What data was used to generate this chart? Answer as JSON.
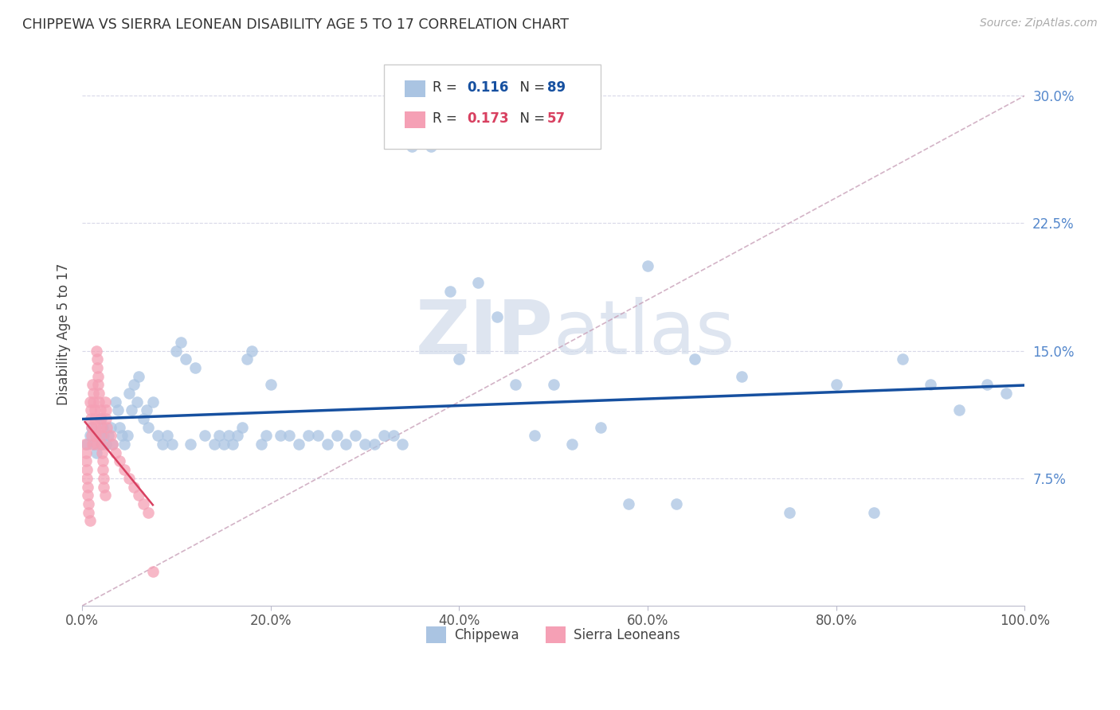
{
  "title": "CHIPPEWA VS SIERRA LEONEAN DISABILITY AGE 5 TO 17 CORRELATION CHART",
  "source": "Source: ZipAtlas.com",
  "ylabel": "Disability Age 5 to 17",
  "xlim": [
    0,
    1.0
  ],
  "ylim": [
    0,
    0.32
  ],
  "yticks": [
    0.075,
    0.15,
    0.225,
    0.3
  ],
  "yticklabels": [
    "7.5%",
    "15.0%",
    "22.5%",
    "30.0%"
  ],
  "xticks": [
    0.0,
    0.2,
    0.4,
    0.6,
    0.8,
    1.0
  ],
  "xticklabels": [
    "0.0%",
    "20.0%",
    "40.0%",
    "60.0%",
    "80.0%",
    "100.0%"
  ],
  "chippewa_R": 0.116,
  "chippewa_N": 89,
  "sierra_R": 0.173,
  "sierra_N": 57,
  "chippewa_color": "#aac4e2",
  "sierra_color": "#f5a0b5",
  "chippewa_line_color": "#1650a0",
  "sierra_line_color": "#d84060",
  "ref_line_color": "#c8a0b8",
  "background_color": "#ffffff",
  "grid_color": "#d8d8e8",
  "watermark_color": "#d0daea",
  "chippewa_x": [
    0.005,
    0.008,
    0.01,
    0.012,
    0.015,
    0.018,
    0.02,
    0.02,
    0.022,
    0.023,
    0.025,
    0.028,
    0.03,
    0.032,
    0.035,
    0.038,
    0.04,
    0.042,
    0.045,
    0.048,
    0.05,
    0.052,
    0.055,
    0.058,
    0.06,
    0.065,
    0.068,
    0.07,
    0.075,
    0.08,
    0.085,
    0.09,
    0.095,
    0.1,
    0.105,
    0.11,
    0.115,
    0.12,
    0.13,
    0.14,
    0.145,
    0.15,
    0.155,
    0.16,
    0.165,
    0.17,
    0.175,
    0.18,
    0.19,
    0.195,
    0.2,
    0.21,
    0.22,
    0.23,
    0.24,
    0.25,
    0.26,
    0.27,
    0.28,
    0.29,
    0.3,
    0.31,
    0.32,
    0.33,
    0.34,
    0.35,
    0.37,
    0.39,
    0.4,
    0.42,
    0.44,
    0.46,
    0.48,
    0.5,
    0.52,
    0.55,
    0.58,
    0.6,
    0.63,
    0.65,
    0.7,
    0.75,
    0.8,
    0.84,
    0.87,
    0.9,
    0.93,
    0.96,
    0.98
  ],
  "chippewa_y": [
    0.095,
    0.1,
    0.105,
    0.095,
    0.09,
    0.1,
    0.095,
    0.11,
    0.105,
    0.1,
    0.095,
    0.1,
    0.105,
    0.095,
    0.12,
    0.115,
    0.105,
    0.1,
    0.095,
    0.1,
    0.125,
    0.115,
    0.13,
    0.12,
    0.135,
    0.11,
    0.115,
    0.105,
    0.12,
    0.1,
    0.095,
    0.1,
    0.095,
    0.15,
    0.155,
    0.145,
    0.095,
    0.14,
    0.1,
    0.095,
    0.1,
    0.095,
    0.1,
    0.095,
    0.1,
    0.105,
    0.145,
    0.15,
    0.095,
    0.1,
    0.13,
    0.1,
    0.1,
    0.095,
    0.1,
    0.1,
    0.095,
    0.1,
    0.095,
    0.1,
    0.095,
    0.095,
    0.1,
    0.1,
    0.095,
    0.27,
    0.27,
    0.185,
    0.145,
    0.19,
    0.17,
    0.13,
    0.1,
    0.13,
    0.095,
    0.105,
    0.06,
    0.2,
    0.06,
    0.145,
    0.135,
    0.055,
    0.13,
    0.055,
    0.145,
    0.13,
    0.115,
    0.13,
    0.125
  ],
  "sierra_x": [
    0.003,
    0.004,
    0.004,
    0.005,
    0.005,
    0.006,
    0.006,
    0.007,
    0.007,
    0.008,
    0.008,
    0.009,
    0.009,
    0.01,
    0.01,
    0.011,
    0.011,
    0.012,
    0.012,
    0.013,
    0.013,
    0.014,
    0.014,
    0.015,
    0.015,
    0.016,
    0.016,
    0.017,
    0.017,
    0.018,
    0.018,
    0.019,
    0.019,
    0.02,
    0.02,
    0.021,
    0.021,
    0.022,
    0.022,
    0.023,
    0.023,
    0.024,
    0.024,
    0.025,
    0.025,
    0.026,
    0.03,
    0.032,
    0.035,
    0.04,
    0.045,
    0.05,
    0.055,
    0.06,
    0.065,
    0.07,
    0.075
  ],
  "sierra_y": [
    0.095,
    0.09,
    0.085,
    0.08,
    0.075,
    0.07,
    0.065,
    0.06,
    0.055,
    0.05,
    0.12,
    0.115,
    0.11,
    0.105,
    0.1,
    0.095,
    0.13,
    0.125,
    0.12,
    0.115,
    0.11,
    0.105,
    0.1,
    0.095,
    0.15,
    0.145,
    0.14,
    0.135,
    0.13,
    0.125,
    0.12,
    0.115,
    0.11,
    0.105,
    0.1,
    0.095,
    0.09,
    0.085,
    0.08,
    0.075,
    0.07,
    0.065,
    0.12,
    0.115,
    0.11,
    0.105,
    0.1,
    0.095,
    0.09,
    0.085,
    0.08,
    0.075,
    0.07,
    0.065,
    0.06,
    0.055,
    0.02
  ]
}
